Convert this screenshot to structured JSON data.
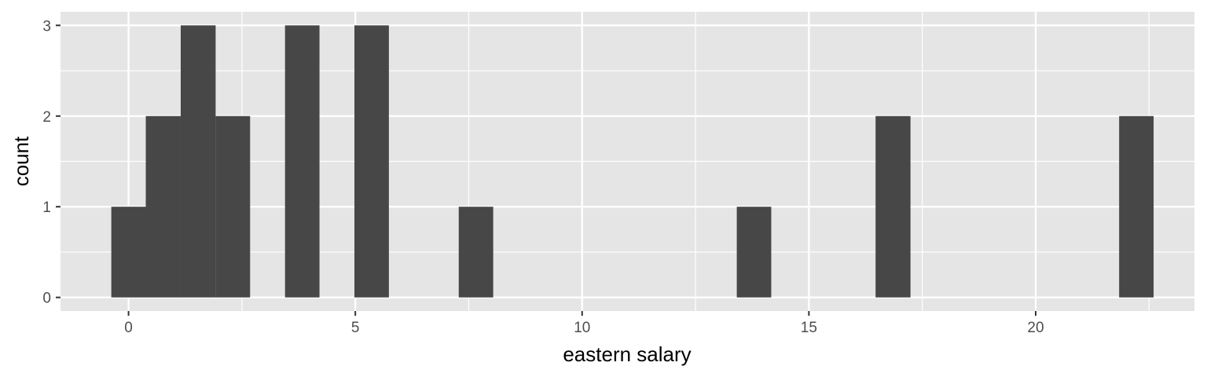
{
  "chart_data": {
    "type": "histogram",
    "xlabel": "eastern salary",
    "ylabel": "count",
    "xlim": [
      -1.5,
      23.5
    ],
    "ylim": [
      -0.15,
      3.15
    ],
    "x_ticks": [
      0,
      5,
      10,
      15,
      20
    ],
    "y_ticks": [
      0,
      1,
      2,
      3
    ],
    "grid": true,
    "bar_color": "#474747",
    "panel_color": "#e5e5e5",
    "bins": [
      {
        "x0": -0.38,
        "x1": 0.38,
        "count": 1
      },
      {
        "x0": 0.38,
        "x1": 1.15,
        "count": 2
      },
      {
        "x0": 1.15,
        "x1": 1.92,
        "count": 3
      },
      {
        "x0": 1.92,
        "x1": 2.68,
        "count": 2
      },
      {
        "x0": 3.45,
        "x1": 4.21,
        "count": 3
      },
      {
        "x0": 4.98,
        "x1": 5.74,
        "count": 3
      },
      {
        "x0": 7.28,
        "x1": 8.04,
        "count": 1
      },
      {
        "x0": 13.41,
        "x1": 14.17,
        "count": 1
      },
      {
        "x0": 16.47,
        "x1": 17.24,
        "count": 2
      },
      {
        "x0": 21.84,
        "x1": 22.6,
        "count": 2
      }
    ]
  }
}
